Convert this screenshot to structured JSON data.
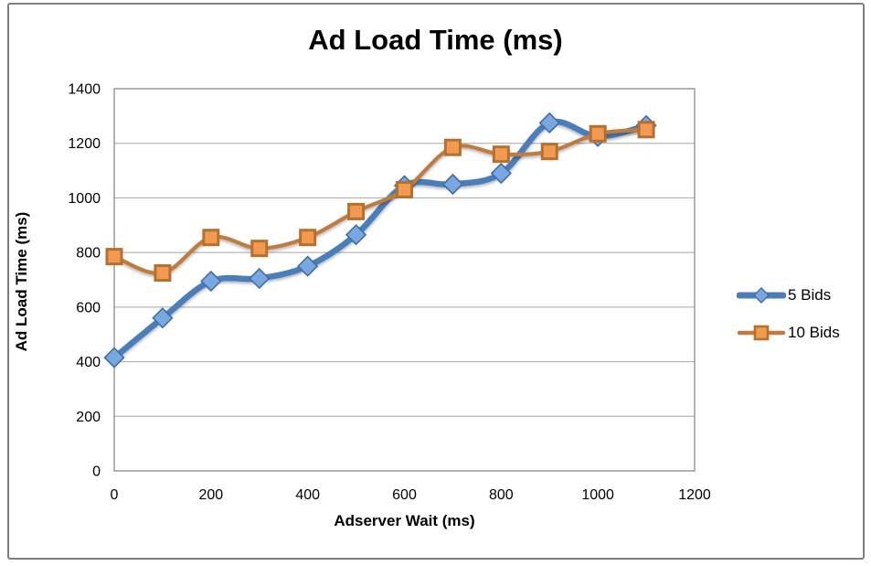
{
  "chart_data": {
    "type": "line",
    "title": "Ad Load Time (ms)",
    "xlabel": "Adserver Wait (ms)",
    "ylabel": "Ad Load Time (ms)",
    "x": [
      0,
      100,
      200,
      300,
      400,
      500,
      600,
      700,
      800,
      900,
      1000,
      1100
    ],
    "series": [
      {
        "name": "5 Bids",
        "marker": "diamond",
        "line_color": "#4A7EBB",
        "marker_fill": "#7BA7E0",
        "marker_stroke": "#3F6EA5",
        "values": [
          415,
          560,
          695,
          705,
          750,
          865,
          1045,
          1050,
          1090,
          1275,
          1225,
          1265
        ]
      },
      {
        "name": "10 Bids",
        "marker": "square",
        "line_color": "#BF7C3F",
        "marker_fill": "#F19A51",
        "marker_stroke": "#B5702E",
        "values": [
          785,
          725,
          855,
          815,
          855,
          950,
          1030,
          1185,
          1160,
          1170,
          1235,
          1250
        ]
      }
    ],
    "xlim": [
      0,
      1200
    ],
    "ylim": [
      0,
      1400
    ],
    "x_ticks": [
      0,
      200,
      400,
      600,
      800,
      1000,
      1200
    ],
    "y_ticks": [
      0,
      200,
      400,
      600,
      800,
      1000,
      1200,
      1400
    ],
    "grid": "horizontal",
    "legend_position": "right",
    "smoothed_lines": true,
    "colors": {
      "background": "#FFFFFF",
      "frame_border": "#7F7F7F",
      "plot_border": "#8C8C8C",
      "gridline": "#A6A6A6",
      "text": "#000000"
    }
  }
}
